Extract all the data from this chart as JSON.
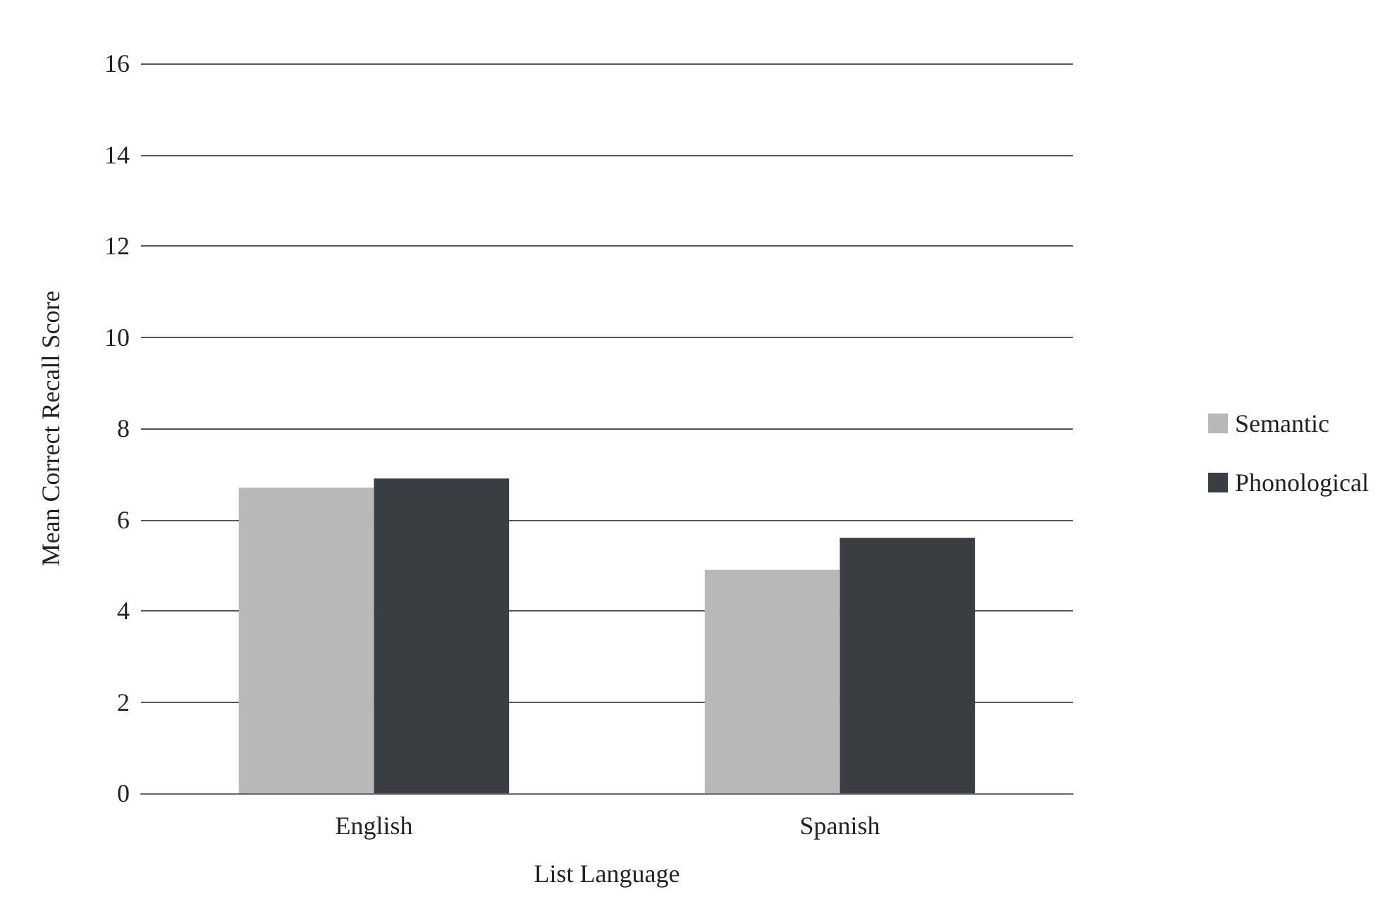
{
  "chart_data": {
    "type": "bar",
    "xlabel": "List Language",
    "ylabel": "Mean Correct Recall Score",
    "categories": [
      "English",
      "Spanish"
    ],
    "series": [
      {
        "name": "Semantic",
        "color": "#b8b8b8",
        "values": [
          6.7,
          4.9
        ]
      },
      {
        "name": "Phonological",
        "color": "#3a3d42",
        "values": [
          6.9,
          5.6
        ]
      }
    ],
    "ylim": [
      0,
      16
    ],
    "yticks": [
      0,
      2,
      4,
      6,
      8,
      10,
      12,
      14,
      16
    ],
    "grid": "y",
    "legend": "right"
  }
}
